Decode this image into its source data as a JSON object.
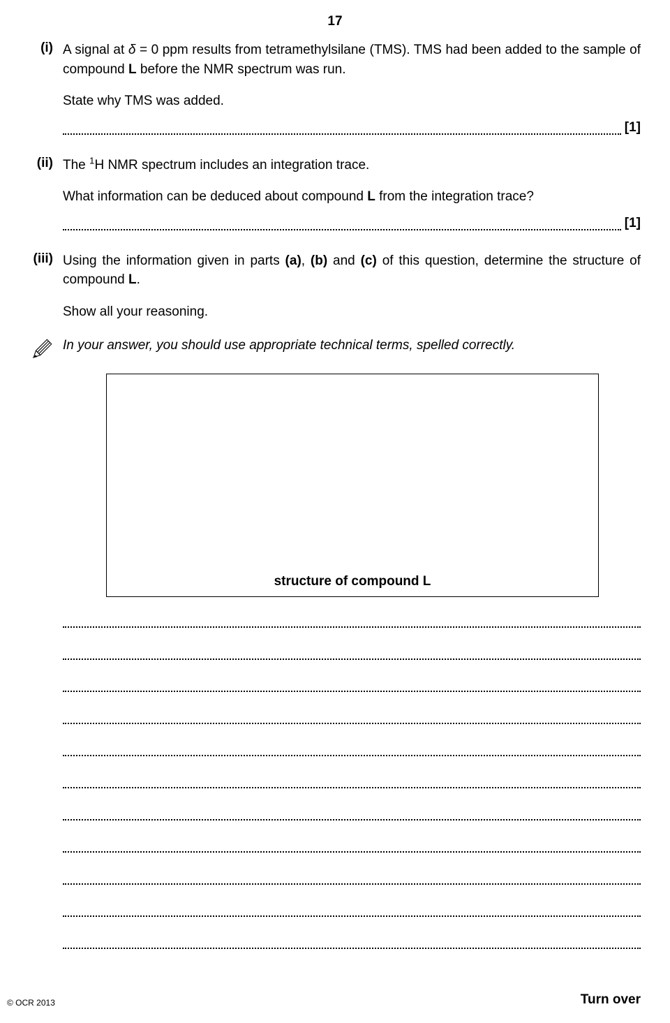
{
  "page_number": "17",
  "questions": {
    "i": {
      "label": "(i)",
      "para1_html": "A signal at <i>δ</i> = 0 ppm results from tetramethylsilane (TMS). TMS had been added to the sample of compound <b>L</b> before the NMR spectrum was run.",
      "para2": "State why TMS was added.",
      "marks": "[1]"
    },
    "ii": {
      "label": "(ii)",
      "para1_html": "The <sup>1</sup>H NMR spectrum includes an integration trace.",
      "para2_html": "What information can be deduced about compound <b>L</b> from the integration trace?",
      "marks": "[1]"
    },
    "iii": {
      "label": "(iii)",
      "para1_html": "Using the information given in parts <b>(a)</b>, <b>(b)</b> and <b>(c)</b> of this question, determine the structure of compound <b>L</b>.",
      "para2": "Show all your reasoning.",
      "instruction": "In your answer, you should use appropriate technical terms, spelled correctly.",
      "box_label": "structure of compound L"
    }
  },
  "answer_line_count": 11,
  "footer": {
    "copyright": "© OCR 2013",
    "turnover": "Turn over"
  }
}
